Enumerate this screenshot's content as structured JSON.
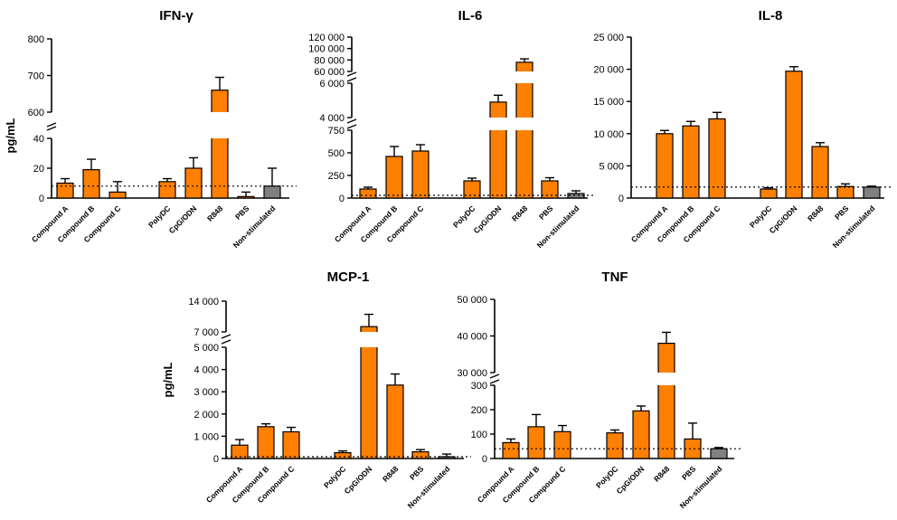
{
  "figure": {
    "ylabel_left_top": "pg/mL",
    "ylabel_left_bottom": "pg/mL",
    "colors": {
      "treatment": "#FF7F00",
      "control": "#808080"
    }
  },
  "chart_data": [
    {
      "type": "bar",
      "title": "IFN-γ",
      "categories": [
        "Compound A",
        "Compound B",
        "Compound C",
        "PolyDC",
        "CpG/ODN",
        "R848",
        "PBS",
        "Non-stimulated"
      ],
      "values": [
        10,
        19,
        4,
        11,
        20,
        660,
        1,
        8
      ],
      "errors": [
        3,
        7,
        7,
        2,
        7,
        35,
        3,
        12
      ],
      "colors": [
        "#FF7F00",
        "#FF7F00",
        "#FF7F00",
        "#FF7F00",
        "#FF7F00",
        "#FF7F00",
        "#FF7F00",
        "#808080"
      ],
      "reference_line": 8,
      "y_segments": [
        {
          "range": [
            0,
            40
          ],
          "ticks": [
            "0",
            "20",
            "40"
          ]
        },
        {
          "range": [
            600,
            800
          ],
          "ticks": [
            "600",
            "700",
            "800"
          ]
        }
      ],
      "ylabel": "pg/mL"
    },
    {
      "type": "bar",
      "title": "IL-6",
      "categories": [
        "Compound A",
        "Compound B",
        "Compound C",
        "PolyDC",
        "CpG/ODN",
        "R848",
        "PBS",
        "Non-stimulated"
      ],
      "values": [
        100,
        460,
        520,
        190,
        4900,
        76000,
        190,
        50
      ],
      "errors": [
        20,
        110,
        70,
        30,
        400,
        6000,
        35,
        30
      ],
      "colors": [
        "#FF7F00",
        "#FF7F00",
        "#FF7F00",
        "#FF7F00",
        "#FF7F00",
        "#FF7F00",
        "#FF7F00",
        "#808080"
      ],
      "reference_line": 30,
      "y_segments": [
        {
          "range": [
            0,
            750
          ],
          "ticks": [
            "0",
            "250",
            "500",
            "750"
          ]
        },
        {
          "range": [
            4000,
            6000
          ],
          "ticks": [
            "4 000",
            "6 000"
          ]
        },
        {
          "range": [
            60000,
            120000
          ],
          "ticks": [
            "60 000",
            "80 000",
            "100 000",
            "120 000"
          ]
        }
      ],
      "ylabel": ""
    },
    {
      "type": "bar",
      "title": "IL-8",
      "categories": [
        "Compound A",
        "Compound B",
        "Compound C",
        "PolyDC",
        "CpG/ODN",
        "R848",
        "PBS",
        "Non-stimulated"
      ],
      "values": [
        10000,
        11200,
        12300,
        1400,
        19700,
        8000,
        1800,
        1700
      ],
      "errors": [
        500,
        700,
        1000,
        200,
        700,
        600,
        400,
        150
      ],
      "colors": [
        "#FF7F00",
        "#FF7F00",
        "#FF7F00",
        "#FF7F00",
        "#FF7F00",
        "#FF7F00",
        "#FF7F00",
        "#808080"
      ],
      "reference_line": 1700,
      "y_segments": [
        {
          "range": [
            0,
            25000
          ],
          "ticks": [
            "0",
            "5 000",
            "10 000",
            "15 000",
            "20 000",
            "25 000"
          ]
        }
      ],
      "ylabel": ""
    },
    {
      "type": "bar",
      "title": "MCP-1",
      "categories": [
        "Compound A",
        "Compound B",
        "Compound C",
        "PolyDC",
        "CpG/ODN",
        "R848",
        "PBS",
        "Non-stimulated"
      ],
      "values": [
        600,
        1430,
        1200,
        260,
        8200,
        3300,
        300,
        80
      ],
      "errors": [
        250,
        130,
        200,
        80,
        2800,
        500,
        100,
        120
      ],
      "colors": [
        "#FF7F00",
        "#FF7F00",
        "#FF7F00",
        "#FF7F00",
        "#FF7F00",
        "#FF7F00",
        "#FF7F00",
        "#808080"
      ],
      "reference_line": 80,
      "y_segments": [
        {
          "range": [
            0,
            5000
          ],
          "ticks": [
            "0",
            "1 000",
            "2 000",
            "3 000",
            "4 000",
            "5 000"
          ]
        },
        {
          "range": [
            7000,
            14000
          ],
          "ticks": [
            "7 000",
            "14 000"
          ]
        }
      ],
      "ylabel": "pg/mL"
    },
    {
      "type": "bar",
      "title": "TNF",
      "categories": [
        "Compound A",
        "Compound B",
        "Compound C",
        "PolyDC",
        "CpG/ODN",
        "R848",
        "PBS",
        "Non-stimulated"
      ],
      "values": [
        65,
        130,
        110,
        105,
        195,
        38000,
        80,
        40
      ],
      "errors": [
        15,
        50,
        25,
        12,
        20,
        3000,
        65,
        5
      ],
      "colors": [
        "#FF7F00",
        "#FF7F00",
        "#FF7F00",
        "#FF7F00",
        "#FF7F00",
        "#FF7F00",
        "#FF7F00",
        "#808080"
      ],
      "reference_line": 40,
      "y_segments": [
        {
          "range": [
            0,
            300
          ],
          "ticks": [
            "0",
            "100",
            "200",
            "300"
          ]
        },
        {
          "range": [
            30000,
            50000
          ],
          "ticks": [
            "30 000",
            "40 000",
            "50 000"
          ]
        }
      ],
      "ylabel": ""
    }
  ]
}
